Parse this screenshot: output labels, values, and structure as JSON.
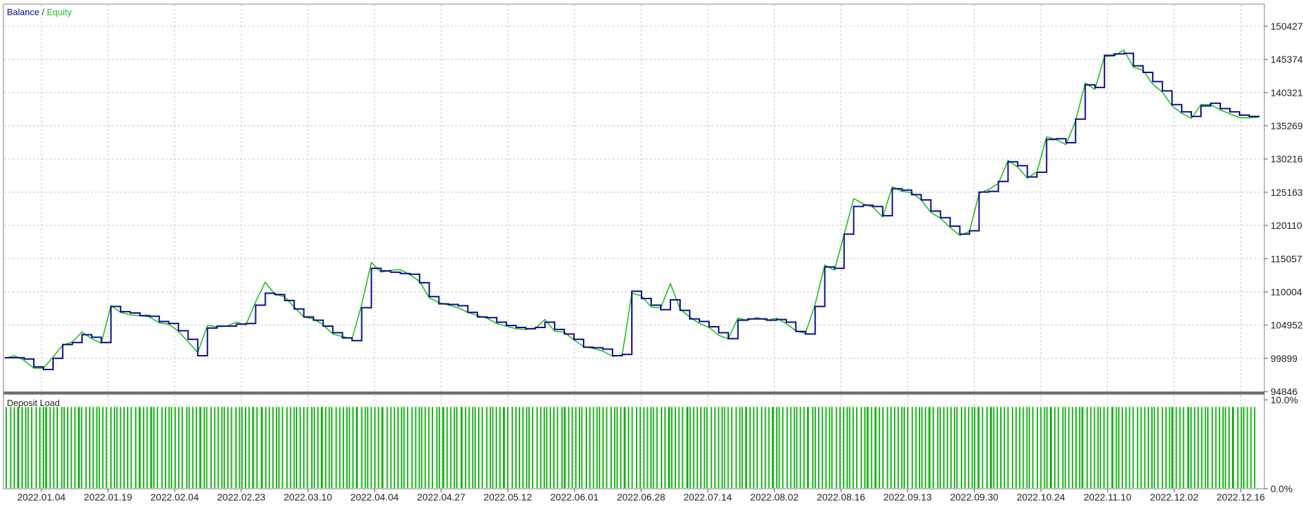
{
  "chart_data": [
    {
      "type": "line",
      "legend": {
        "items": [
          "Balance",
          "Equity"
        ],
        "separator": " / ",
        "colors": [
          "#0b0b8c",
          "#1fbf1f"
        ]
      },
      "y_tick_labels": [
        "150427",
        "145374",
        "140321",
        "135269",
        "130216",
        "125163",
        "120110",
        "115057",
        "110004",
        "104952",
        "99899",
        "94846"
      ],
      "ylim": [
        94846,
        150427
      ],
      "x_tick_labels": [
        "2022.01.04",
        "2022.01.19",
        "2022.02.04",
        "2022.02.23",
        "2022.03.10",
        "2022.04.04",
        "2022.04.27",
        "2022.05.12",
        "2022.06.01",
        "2022.06.28",
        "2022.07.14",
        "2022.08.02",
        "2022.08.16",
        "2022.09.13",
        "2022.09.30",
        "2022.10.24",
        "2022.11.10",
        "2022.12.02",
        "2022.12.16"
      ],
      "grid": true,
      "series": [
        {
          "name": "Balance",
          "color": "#0b0b8c",
          "values": [
            100000,
            100000,
            99800,
            98600,
            98200,
            99900,
            102000,
            102300,
            103500,
            103100,
            102300,
            107800,
            107000,
            106800,
            106400,
            106300,
            105500,
            105200,
            104100,
            102800,
            100300,
            104500,
            104800,
            104800,
            105100,
            105200,
            108000,
            109800,
            109600,
            108700,
            107400,
            106200,
            105700,
            104800,
            103800,
            103000,
            102600,
            107600,
            113600,
            113200,
            113000,
            112800,
            112700,
            111400,
            109300,
            108200,
            108100,
            107900,
            106900,
            106200,
            106100,
            105400,
            104900,
            104600,
            104400,
            104600,
            105400,
            104300,
            103600,
            102800,
            101600,
            101500,
            101300,
            100300,
            100500,
            110100,
            109000,
            108000,
            107300,
            108800,
            107200,
            105900,
            105500,
            104700,
            103800,
            102900,
            105700,
            105900,
            105900,
            105700,
            105800,
            105400,
            104000,
            103600,
            107800,
            113800,
            113600,
            118800,
            123000,
            123200,
            123000,
            121600,
            125700,
            125500,
            124800,
            124000,
            122300,
            121300,
            120000,
            118800,
            119300,
            125200,
            125300,
            126800,
            129800,
            129200,
            127500,
            128200,
            133200,
            133300,
            132700,
            136300,
            141500,
            141100,
            146000,
            146200,
            146300,
            144400,
            143400,
            142000,
            140600,
            138500,
            137400,
            136700,
            138300,
            138700,
            137900,
            137400,
            136900,
            136700,
            136800
          ]
        },
        {
          "name": "Equity",
          "color": "#1fbf1f",
          "values": [
            99900,
            100300,
            99600,
            98400,
            98400,
            100100,
            101900,
            102400,
            103900,
            102900,
            102200,
            107900,
            106900,
            106500,
            106400,
            106200,
            105300,
            105100,
            104000,
            102400,
            100800,
            104900,
            104700,
            104800,
            105400,
            105000,
            108500,
            111500,
            109600,
            109300,
            107700,
            106200,
            105900,
            105000,
            103600,
            103200,
            102900,
            108100,
            114500,
            113000,
            113300,
            113400,
            112600,
            111600,
            109100,
            108400,
            108000,
            107600,
            106900,
            106400,
            106000,
            105200,
            104800,
            104400,
            104300,
            104500,
            105800,
            104000,
            103900,
            102700,
            101700,
            101400,
            101000,
            100200,
            100400,
            109800,
            109400,
            107700,
            107600,
            111300,
            107400,
            106200,
            105200,
            104600,
            103400,
            102900,
            106000,
            105700,
            106100,
            105700,
            106000,
            105200,
            104100,
            103700,
            108100,
            114100,
            113300,
            118700,
            124200,
            123400,
            122900,
            121400,
            126000,
            125300,
            125100,
            124000,
            122100,
            121200,
            119800,
            118600,
            119200,
            125000,
            125600,
            126500,
            130000,
            129000,
            127300,
            128300,
            133600,
            133200,
            132400,
            136000,
            141800,
            140800,
            145800,
            145900,
            146800,
            144200,
            143700,
            141600,
            140400,
            138300,
            137200,
            136400,
            138500,
            138500,
            137700,
            137100,
            136500,
            136500,
            136600
          ]
        }
      ]
    },
    {
      "type": "bar",
      "title": "Deposit Load",
      "y_tick_labels": [
        "10.0%",
        "0.0%"
      ],
      "ylim": [
        0,
        10
      ],
      "color": "#19b219",
      "typical_value": 9.2
    }
  ]
}
